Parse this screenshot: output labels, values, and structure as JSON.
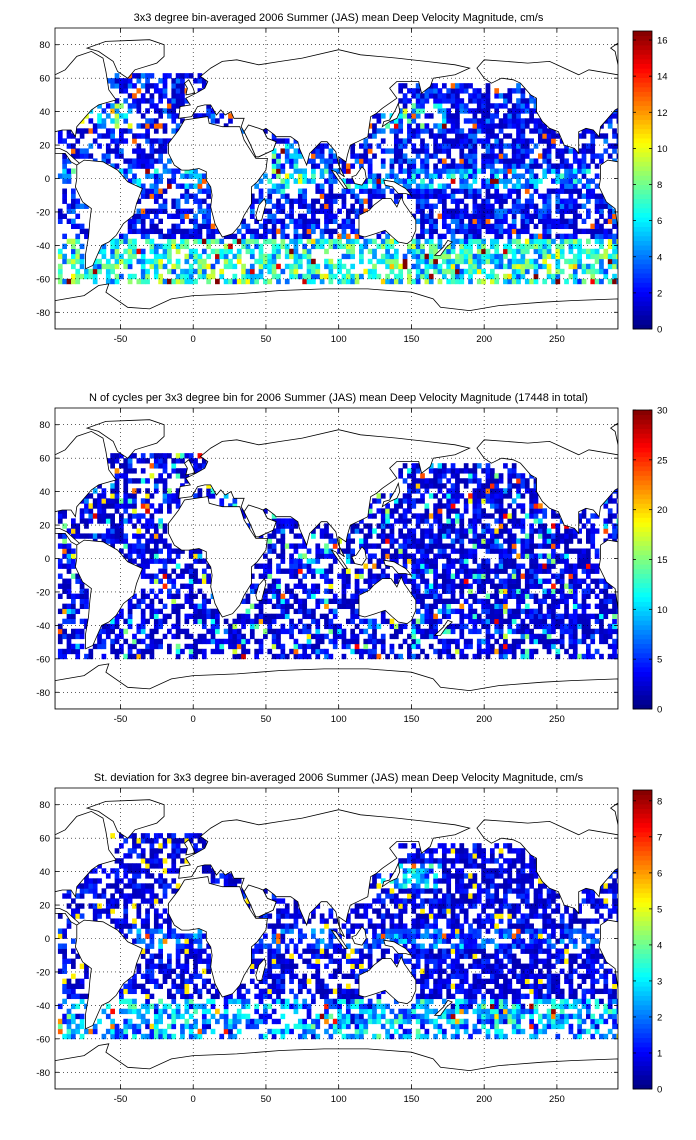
{
  "chart_data": [
    {
      "type": "heatmap",
      "title": "3x3 degree bin-averaged 2006 Summer (JAS) mean Deep Velocity Magnitude, cm/s",
      "xlim": [
        -95,
        292
      ],
      "ylim": [
        -90,
        90
      ],
      "x_ticks": [
        -50,
        0,
        50,
        100,
        150,
        200,
        250
      ],
      "y_ticks": [
        80,
        60,
        40,
        20,
        0,
        -20,
        -40,
        -60,
        -80
      ],
      "colorbar": {
        "min": 0,
        "max": 16.5,
        "ticks": [
          0,
          2,
          4,
          6,
          8,
          10,
          12,
          14,
          16
        ]
      },
      "colormap": "jet",
      "grid": true,
      "bin_size_deg": 3,
      "intensity_profile": "velocity"
    },
    {
      "type": "heatmap",
      "title": "N of cycles per 3x3 degree bin for 2006 Summer (JAS) mean Deep Velocity Magnitude (17448 in total)",
      "xlim": [
        -95,
        292
      ],
      "ylim": [
        -90,
        90
      ],
      "x_ticks": [
        -50,
        0,
        50,
        100,
        150,
        200,
        250
      ],
      "y_ticks": [
        80,
        60,
        40,
        20,
        0,
        -20,
        -40,
        -60,
        -80
      ],
      "colorbar": {
        "min": 0,
        "max": 30,
        "ticks": [
          0,
          5,
          10,
          15,
          20,
          25,
          30
        ]
      },
      "colormap": "jet",
      "grid": true,
      "bin_size_deg": 3,
      "intensity_profile": "counts"
    },
    {
      "type": "heatmap",
      "title": "St. deviation for 3x3 degree bin-averaged 2006 Summer (JAS) mean Deep Velocity Magnitude, cm/s",
      "xlim": [
        -95,
        292
      ],
      "ylim": [
        -90,
        90
      ],
      "x_ticks": [
        -50,
        0,
        50,
        100,
        150,
        200,
        250
      ],
      "y_ticks": [
        80,
        60,
        40,
        20,
        0,
        -20,
        -40,
        -60,
        -80
      ],
      "colorbar": {
        "min": 0,
        "max": 8.3,
        "ticks": [
          0,
          1,
          2,
          3,
          4,
          5,
          6,
          7,
          8
        ]
      },
      "colormap": "jet",
      "grid": true,
      "bin_size_deg": 3,
      "intensity_profile": "stdev"
    }
  ]
}
